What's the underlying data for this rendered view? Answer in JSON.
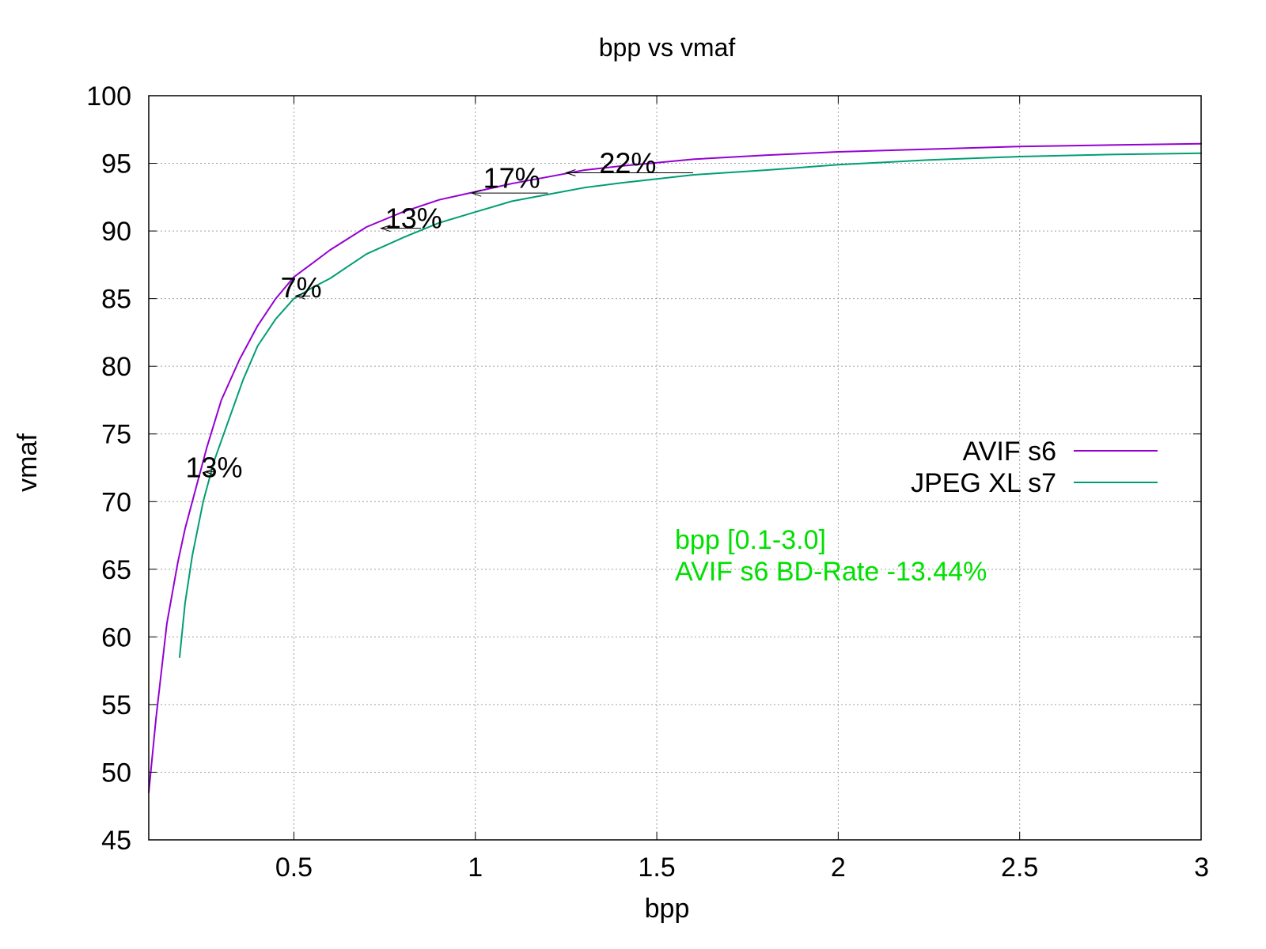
{
  "chart_data": {
    "type": "line",
    "title": "bpp vs vmaf",
    "xlabel": "bpp",
    "ylabel": "vmaf",
    "xlim": [
      0.1,
      3.0
    ],
    "ylim": [
      45,
      100
    ],
    "xticks": [
      0.5,
      1,
      1.5,
      2,
      2.5,
      3
    ],
    "xtick_labels": [
      "0.5",
      "1",
      "1.5",
      "2",
      "2.5",
      "3"
    ],
    "yticks": [
      45,
      50,
      55,
      60,
      65,
      70,
      75,
      80,
      85,
      90,
      95,
      100
    ],
    "ytick_labels": [
      "45",
      "50",
      "55",
      "60",
      "65",
      "70",
      "75",
      "80",
      "85",
      "90",
      "95",
      "100"
    ],
    "grid": true,
    "legend_position": "right",
    "series": [
      {
        "name": "AVIF s6",
        "color": "#9400d3",
        "x": [
          0.1,
          0.12,
          0.15,
          0.18,
          0.2,
          0.23,
          0.26,
          0.3,
          0.35,
          0.4,
          0.45,
          0.5,
          0.55,
          0.6,
          0.7,
          0.8,
          0.9,
          1.0,
          1.1,
          1.2,
          1.3,
          1.4,
          1.5,
          1.6,
          1.8,
          2.0,
          2.25,
          2.5,
          2.75,
          3.0
        ],
        "y": [
          48.5,
          54.0,
          61.0,
          65.5,
          68.0,
          71.0,
          74.0,
          77.5,
          80.5,
          83.0,
          85.0,
          86.6,
          87.6,
          88.6,
          90.3,
          91.4,
          92.3,
          92.9,
          93.5,
          94.0,
          94.5,
          94.8,
          95.05,
          95.3,
          95.6,
          95.85,
          96.05,
          96.25,
          96.35,
          96.45
        ]
      },
      {
        "name": "JPEG XL s7",
        "color": "#009e73",
        "x": [
          0.185,
          0.2,
          0.22,
          0.25,
          0.28,
          0.32,
          0.36,
          0.4,
          0.45,
          0.5,
          0.55,
          0.6,
          0.65,
          0.7,
          0.8,
          0.9,
          1.0,
          1.1,
          1.2,
          1.3,
          1.4,
          1.5,
          1.6,
          1.8,
          2.0,
          2.25,
          2.5,
          2.75,
          3.0
        ],
        "y": [
          58.5,
          62.5,
          66.0,
          70.0,
          73.0,
          76.0,
          79.0,
          81.5,
          83.5,
          85.0,
          85.8,
          86.5,
          87.4,
          88.3,
          89.5,
          90.6,
          91.4,
          92.2,
          92.7,
          93.2,
          93.55,
          93.85,
          94.15,
          94.5,
          94.9,
          95.25,
          95.5,
          95.65,
          95.75
        ]
      }
    ],
    "annotations": [
      {
        "text": "13%",
        "x": 0.28,
        "y": 72.5,
        "arrow_from_x": 0.28,
        "arrow_to_x": 0.255,
        "arrow_y": 72.2
      },
      {
        "text": "7%",
        "x": 0.52,
        "y": 85.8,
        "arrow_from_x": 0.545,
        "arrow_to_x": 0.505,
        "arrow_y": 85.2
      },
      {
        "text": "13%",
        "x": 0.83,
        "y": 90.9,
        "arrow_from_x": 0.85,
        "arrow_to_x": 0.74,
        "arrow_y": 90.2
      },
      {
        "text": "17%",
        "x": 1.1,
        "y": 93.9,
        "arrow_from_x": 1.2,
        "arrow_to_x": 0.99,
        "arrow_y": 92.8
      },
      {
        "text": "22%",
        "x": 1.42,
        "y": 95.0,
        "arrow_from_x": 1.6,
        "arrow_to_x": 1.25,
        "arrow_y": 94.3
      }
    ],
    "info_text": {
      "color": "#00e000",
      "lines": [
        "bpp [0.1-3.0]",
        "AVIF s6 BD-Rate -13.44%"
      ]
    }
  }
}
